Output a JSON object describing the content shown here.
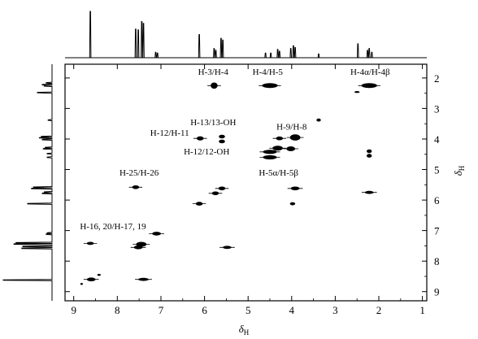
{
  "chart_data": {
    "type": "scatter",
    "title": "",
    "subtitle": "",
    "xlabel": "δ",
    "xlabel_sub": "H",
    "ylabel": "δ",
    "ylabel_sub": "H",
    "x_axis": {
      "range": [
        9.2,
        0.9
      ],
      "reversed": true,
      "ticks": [
        9,
        8,
        7,
        6,
        5,
        4,
        3,
        2,
        1
      ],
      "tick_labels": [
        "9",
        "8",
        "7",
        "6",
        "5",
        "4",
        "3",
        "2",
        "1"
      ]
    },
    "y_axis": {
      "range": [
        1.55,
        9.3
      ],
      "reversed": true,
      "position": "right",
      "ticks": [
        2,
        3,
        4,
        5,
        6,
        7,
        8,
        9
      ],
      "tick_labels": [
        "2",
        "3",
        "4",
        "5",
        "6",
        "7",
        "8",
        "9"
      ]
    },
    "grid": false,
    "legend": "none",
    "projection_peaks": [
      {
        "shift": 8.62,
        "height": 1.0
      },
      {
        "shift": 7.58,
        "height": 0.62
      },
      {
        "shift": 7.52,
        "height": 0.6
      },
      {
        "shift": 7.44,
        "height": 0.78
      },
      {
        "shift": 7.4,
        "height": 0.74
      },
      {
        "shift": 7.12,
        "height": 0.12
      },
      {
        "shift": 7.08,
        "height": 0.1
      },
      {
        "shift": 6.12,
        "height": 0.5
      },
      {
        "shift": 5.78,
        "height": 0.2
      },
      {
        "shift": 5.74,
        "height": 0.16
      },
      {
        "shift": 5.62,
        "height": 0.42
      },
      {
        "shift": 5.58,
        "height": 0.38
      },
      {
        "shift": 4.6,
        "height": 0.1
      },
      {
        "shift": 4.48,
        "height": 0.1
      },
      {
        "shift": 4.32,
        "height": 0.18
      },
      {
        "shift": 4.28,
        "height": 0.14
      },
      {
        "shift": 4.02,
        "height": 0.2
      },
      {
        "shift": 3.96,
        "height": 0.26
      },
      {
        "shift": 3.92,
        "height": 0.22
      },
      {
        "shift": 3.38,
        "height": 0.08
      },
      {
        "shift": 2.48,
        "height": 0.3
      },
      {
        "shift": 2.26,
        "height": 0.16
      },
      {
        "shift": 2.22,
        "height": 0.2
      },
      {
        "shift": 2.16,
        "height": 0.12
      }
    ],
    "cross_peaks": [
      {
        "x": 5.78,
        "y": 2.25,
        "rx": 0.08,
        "ry": 0.1
      },
      {
        "x": 4.5,
        "y": 2.25,
        "rx": 0.18,
        "ry": 0.08
      },
      {
        "x": 2.22,
        "y": 2.25,
        "rx": 0.18,
        "ry": 0.08
      },
      {
        "x": 2.5,
        "y": 2.46,
        "rx": 0.06,
        "ry": 0.03
      },
      {
        "x": 3.38,
        "y": 3.38,
        "rx": 0.05,
        "ry": 0.05
      },
      {
        "x": 6.1,
        "y": 3.98,
        "rx": 0.08,
        "ry": 0.07
      },
      {
        "x": 5.6,
        "y": 3.92,
        "rx": 0.07,
        "ry": 0.06
      },
      {
        "x": 5.6,
        "y": 4.08,
        "rx": 0.07,
        "ry": 0.06
      },
      {
        "x": 4.28,
        "y": 3.98,
        "rx": 0.08,
        "ry": 0.06
      },
      {
        "x": 3.92,
        "y": 3.95,
        "rx": 0.12,
        "ry": 0.1
      },
      {
        "x": 4.32,
        "y": 4.3,
        "rx": 0.12,
        "ry": 0.08
      },
      {
        "x": 4.5,
        "y": 4.42,
        "rx": 0.16,
        "ry": 0.07
      },
      {
        "x": 4.5,
        "y": 4.6,
        "rx": 0.16,
        "ry": 0.07
      },
      {
        "x": 4.02,
        "y": 4.32,
        "rx": 0.1,
        "ry": 0.08
      },
      {
        "x": 2.22,
        "y": 4.4,
        "rx": 0.06,
        "ry": 0.06
      },
      {
        "x": 2.22,
        "y": 4.55,
        "rx": 0.06,
        "ry": 0.06
      },
      {
        "x": 3.92,
        "y": 5.62,
        "rx": 0.1,
        "ry": 0.06
      },
      {
        "x": 2.22,
        "y": 5.75,
        "rx": 0.1,
        "ry": 0.05
      },
      {
        "x": 7.58,
        "y": 5.58,
        "rx": 0.08,
        "ry": 0.06
      },
      {
        "x": 5.6,
        "y": 5.62,
        "rx": 0.08,
        "ry": 0.06
      },
      {
        "x": 5.75,
        "y": 5.78,
        "rx": 0.08,
        "ry": 0.06
      },
      {
        "x": 6.12,
        "y": 6.12,
        "rx": 0.08,
        "ry": 0.06
      },
      {
        "x": 3.98,
        "y": 6.12,
        "rx": 0.06,
        "ry": 0.05
      },
      {
        "x": 7.1,
        "y": 7.1,
        "rx": 0.1,
        "ry": 0.06
      },
      {
        "x": 8.62,
        "y": 7.42,
        "rx": 0.08,
        "ry": 0.05
      },
      {
        "x": 7.45,
        "y": 7.45,
        "rx": 0.12,
        "ry": 0.08
      },
      {
        "x": 7.52,
        "y": 7.55,
        "rx": 0.1,
        "ry": 0.06
      },
      {
        "x": 5.48,
        "y": 7.55,
        "rx": 0.1,
        "ry": 0.05
      },
      {
        "x": 8.6,
        "y": 8.6,
        "rx": 0.1,
        "ry": 0.06
      },
      {
        "x": 7.4,
        "y": 8.6,
        "rx": 0.12,
        "ry": 0.05
      },
      {
        "x": 8.42,
        "y": 8.45,
        "rx": 0.04,
        "ry": 0.03
      },
      {
        "x": 8.82,
        "y": 8.75,
        "rx": 0.03,
        "ry": 0.02
      }
    ],
    "annotations": [
      {
        "text": "H-3/H-4",
        "x": 5.8,
        "y": 1.9
      },
      {
        "text": "H-4/H-5",
        "x": 4.55,
        "y": 1.9
      },
      {
        "text": "H-4α/H-4β",
        "x": 2.2,
        "y": 1.9
      },
      {
        "text": "H-13/13-OH",
        "x": 5.8,
        "y": 3.55
      },
      {
        "text": "H-9/H-8",
        "x": 4.0,
        "y": 3.7
      },
      {
        "text": "H-12/H-11",
        "x": 6.8,
        "y": 3.9
      },
      {
        "text": "H-12/12-OH",
        "x": 5.95,
        "y": 4.5
      },
      {
        "text": "H-5α/H-5β",
        "x": 4.3,
        "y": 5.2
      },
      {
        "text": "H-25/H-26",
        "x": 7.5,
        "y": 5.2
      },
      {
        "text": "H-16, 20/H-17, 19",
        "x": 8.1,
        "y": 6.95
      }
    ]
  }
}
